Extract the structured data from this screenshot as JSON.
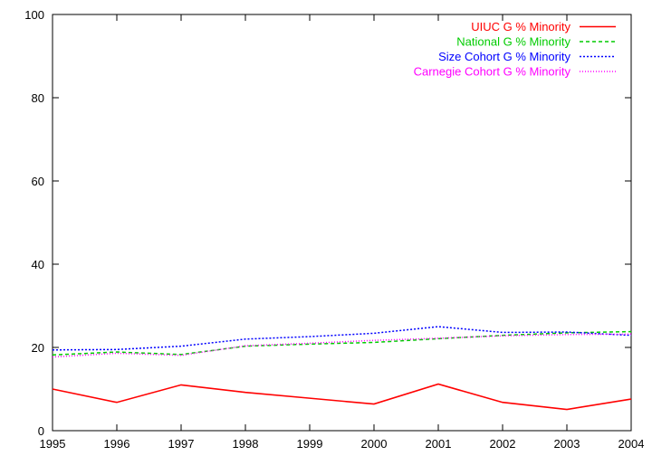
{
  "chart_data": {
    "type": "line",
    "title": "",
    "xlabel": "",
    "ylabel": "",
    "x": [
      1995,
      1996,
      1997,
      1998,
      1999,
      2000,
      2001,
      2002,
      2003,
      2004
    ],
    "xlim": [
      1995,
      2004
    ],
    "ylim": [
      0,
      100
    ],
    "xticks": [
      1995,
      1996,
      1997,
      1998,
      1999,
      2000,
      2001,
      2002,
      2003,
      2004
    ],
    "yticks": [
      0,
      20,
      40,
      60,
      80,
      100
    ],
    "grid": false,
    "legend_position": "top-right",
    "series": [
      {
        "name": "UIUC G % Minority",
        "color": "#ff0000",
        "dash": "solid",
        "values": [
          10.0,
          6.8,
          11.0,
          9.2,
          7.8,
          6.4,
          11.2,
          6.8,
          5.1,
          7.6
        ]
      },
      {
        "name": "National G % Minority",
        "color": "#00cc00",
        "dash": "dashed",
        "values": [
          18.2,
          18.9,
          18.3,
          20.3,
          20.8,
          21.2,
          22.1,
          22.9,
          23.5,
          23.8
        ]
      },
      {
        "name": "Size Cohort G % Minority",
        "color": "#0000ff",
        "dash": "dotted",
        "values": [
          19.4,
          19.5,
          20.3,
          22.0,
          22.6,
          23.4,
          25.0,
          23.6,
          23.7,
          22.9
        ]
      },
      {
        "name": "Carnegie Cohort G % Minority",
        "color": "#ff00ff",
        "dash": "dotted-fine",
        "values": [
          17.7,
          18.6,
          18.1,
          20.4,
          21.0,
          21.7,
          22.2,
          22.8,
          23.1,
          23.2
        ]
      }
    ]
  }
}
